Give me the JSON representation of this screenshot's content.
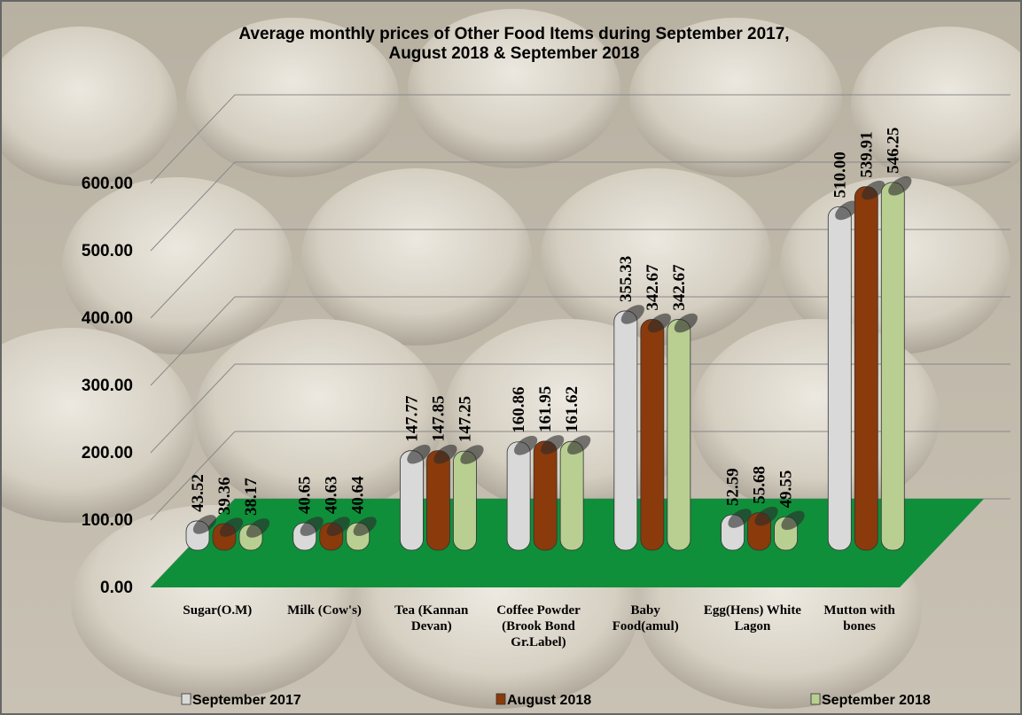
{
  "chart_data": {
    "type": "bar",
    "title": "Average monthly prices of Other Food Items during September 2017, August  2018 & September 2018",
    "categories": [
      "Sugar(O.M)",
      "Milk (Cow's)",
      "Tea (Kannan Devan)",
      "Coffee Powder (Brook Bond Gr.Label)",
      "Baby Food(amul)",
      "Egg(Hens) White Lagon",
      "Mutton with bones"
    ],
    "series": [
      {
        "name": "September 2017",
        "color": "#d9d9d9",
        "values": [
          43.52,
          40.65,
          147.77,
          160.86,
          355.33,
          52.59,
          510
        ],
        "value_labels": [
          "43.52",
          "40.65",
          "147.77",
          "160.86",
          "355.33",
          "52.59",
          "510.00"
        ]
      },
      {
        "name": "August  2018",
        "color": "#8b3a0c",
        "values": [
          39.36,
          40.63,
          147.85,
          161.95,
          342.67,
          55.68,
          539.91
        ],
        "value_labels": [
          "39.36",
          "40.63",
          "147.85",
          "161.95",
          "342.67",
          "55.68",
          "539.91"
        ]
      },
      {
        "name": "September 2018",
        "color": "#b9cf92",
        "values": [
          38.17,
          40.64,
          147.25,
          161.62,
          342.67,
          49.55,
          546.25
        ],
        "value_labels": [
          "38.17",
          "40.64",
          "147.25",
          "161.62",
          "342.67",
          "49.55",
          "546.25"
        ]
      }
    ],
    "ylim": [
      0,
      600
    ],
    "yticks": [
      {
        "value": 0,
        "label": "0.00"
      },
      {
        "value": 100,
        "label": "100.00"
      },
      {
        "value": 200,
        "label": "200.00"
      },
      {
        "value": 300,
        "label": "300.00"
      },
      {
        "value": 400,
        "label": "400.00"
      },
      {
        "value": 500,
        "label": "500.00"
      },
      {
        "value": 600,
        "label": "600.00"
      }
    ],
    "grid": true
  }
}
